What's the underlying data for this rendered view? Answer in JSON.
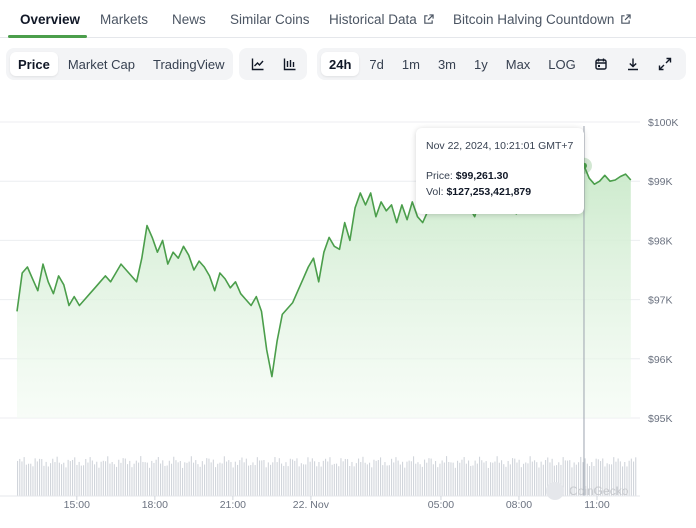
{
  "tabs": [
    {
      "label": "Overview",
      "active": true
    },
    {
      "label": "Markets"
    },
    {
      "label": "News"
    },
    {
      "label": "Similar Coins"
    },
    {
      "label": "Historical Data",
      "external": true
    },
    {
      "label": "Bitcoin Halving Countdown",
      "external": true
    }
  ],
  "toolbar": {
    "metric_tabs": [
      "Price",
      "Market Cap",
      "TradingView"
    ],
    "chart_icons": [
      "line-chart-icon",
      "candlestick-icon"
    ],
    "ranges": [
      "24h",
      "7d",
      "1m",
      "3m",
      "1y",
      "Max",
      "LOG"
    ],
    "active_range": "24h",
    "action_icons": [
      "calendar-icon",
      "download-icon",
      "expand-icon"
    ]
  },
  "tooltip": {
    "date": "Nov 22, 2024, 10:21:01 GMT+7",
    "price_label": "Price:",
    "price_value": "$99,261.30",
    "vol_label": "Vol:",
    "vol_value": "$127,253,421,879"
  },
  "watermark": "CoinGecko",
  "colors": {
    "accent": "#4b9e4b",
    "fill_top": "#c9e9c9",
    "fill_bottom": "#f3fbf3",
    "volume": "#d1d5db"
  },
  "chart_data": {
    "type": "area",
    "y_tick_labels": [
      "$100K",
      "$99K",
      "$98K",
      "$97K",
      "$96K",
      "$95K"
    ],
    "y_ticks": [
      100000,
      99000,
      98000,
      97000,
      96000,
      95000
    ],
    "ylim": [
      95000,
      100000
    ],
    "x_tick_labels": [
      "15:00",
      "18:00",
      "21:00",
      "22. Nov",
      "05:00",
      "08:00",
      "11:00"
    ],
    "x_ticks": [
      15,
      18,
      21,
      24,
      29,
      32,
      35
    ],
    "xlim": [
      12.7,
      36.5
    ],
    "grid": true,
    "legend": "none",
    "x": [
      12.7,
      12.9,
      13.1,
      13.3,
      13.5,
      13.7,
      13.9,
      14.1,
      14.3,
      14.5,
      14.7,
      14.9,
      15.1,
      15.3,
      15.5,
      15.7,
      15.9,
      16.1,
      16.3,
      16.5,
      16.7,
      16.9,
      17.1,
      17.3,
      17.5,
      17.7,
      17.9,
      18.1,
      18.3,
      18.5,
      18.7,
      18.9,
      19.1,
      19.3,
      19.5,
      19.7,
      19.9,
      20.1,
      20.3,
      20.5,
      20.7,
      20.9,
      21.1,
      21.3,
      21.5,
      21.7,
      21.9,
      22.1,
      22.3,
      22.5,
      22.7,
      22.9,
      23.1,
      23.3,
      23.5,
      23.7,
      23.9,
      24.1,
      24.3,
      24.5,
      24.7,
      24.9,
      25.1,
      25.3,
      25.5,
      25.7,
      25.9,
      26.1,
      26.3,
      26.5,
      26.7,
      26.9,
      27.1,
      27.3,
      27.5,
      27.7,
      27.9,
      28.1,
      28.3,
      28.5,
      28.7,
      28.9,
      29.1,
      29.3,
      29.5,
      29.7,
      29.9,
      30.1,
      30.3,
      30.5,
      30.7,
      30.9,
      31.1,
      31.3,
      31.5,
      31.7,
      31.9,
      32.1,
      32.3,
      32.5,
      32.7,
      32.9,
      33.1,
      33.3,
      33.5,
      33.7,
      33.9,
      34.1,
      34.3,
      34.5,
      34.7,
      34.9,
      35.1,
      35.3,
      35.5,
      35.7,
      35.9,
      36.1,
      36.3
    ],
    "values": [
      96800,
      97450,
      97550,
      97350,
      97150,
      97600,
      97300,
      97100,
      97400,
      97250,
      96900,
      97050,
      96900,
      97000,
      97100,
      97200,
      97300,
      97400,
      97300,
      97450,
      97600,
      97500,
      97400,
      97300,
      97700,
      98250,
      98050,
      97800,
      98000,
      97600,
      97800,
      97700,
      97900,
      97750,
      97500,
      97650,
      97550,
      97400,
      97150,
      97450,
      97350,
      97200,
      97300,
      97100,
      97000,
      96900,
      97050,
      96800,
      96150,
      95700,
      96300,
      96750,
      96850,
      96950,
      97150,
      97350,
      97550,
      97700,
      97300,
      97800,
      98050,
      97900,
      97850,
      98300,
      98000,
      98550,
      98800,
      98600,
      98800,
      98400,
      98650,
      98500,
      98600,
      98300,
      98600,
      98350,
      98650,
      98400,
      98300,
      98500,
      98700,
      98600,
      98750,
      98550,
      98850,
      98600,
      98650,
      98550,
      98400,
      98700,
      98800,
      98600,
      98900,
      98750,
      98700,
      98500,
      98450,
      98750,
      98800,
      98900,
      98850,
      99000,
      99100,
      99050,
      98950,
      99050,
      99000,
      99150,
      99200,
      99261,
      99050,
      98950,
      99000,
      99100,
      99000,
      99020,
      99080,
      99120,
      99020
    ]
  }
}
